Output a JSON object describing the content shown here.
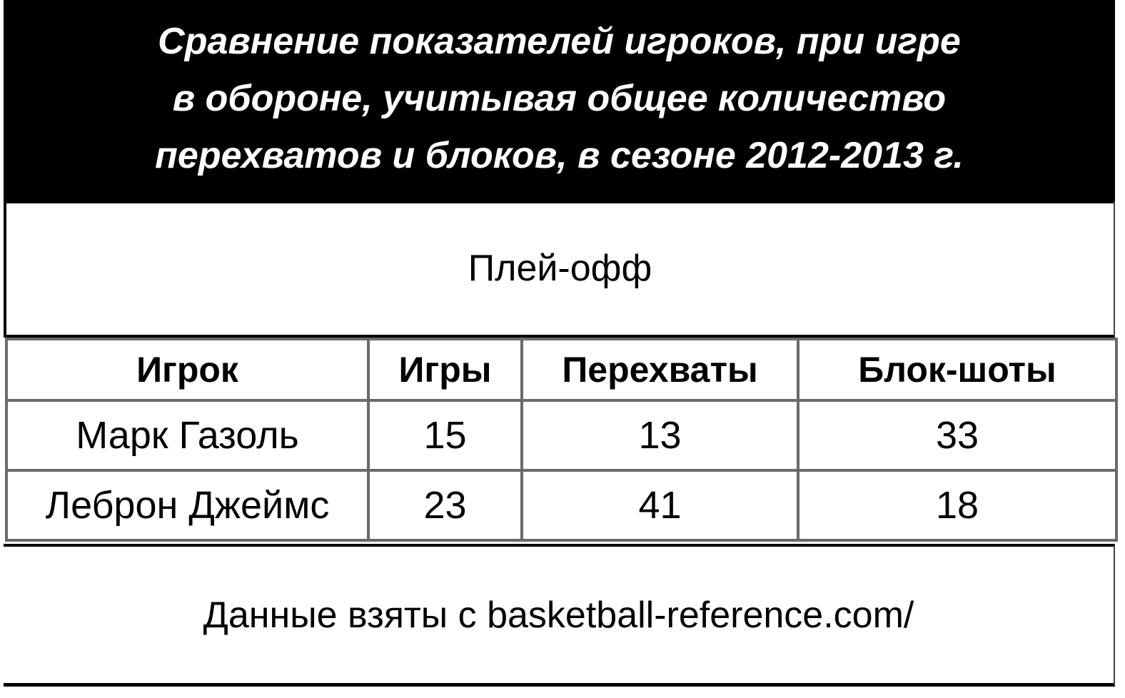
{
  "title_lines": [
    "Сравнение показателей игроков, при игре",
    "в обороне, учитывая общее количество",
    "перехватов и блоков, в сезоне 2012-2013 г."
  ],
  "subtitle": "Плей-офф",
  "footer": "Данные взяты с basketball-reference.com/",
  "chart_data": {
    "type": "table",
    "title": "Сравнение показателей игроков, при игре в обороне, учитывая общее количество перехватов и блоков, в сезоне 2012-2013 г.",
    "subtitle": "Плей-офф",
    "columns": [
      "Игрок",
      "Игры",
      "Перехваты",
      "Блок-шоты"
    ],
    "rows": [
      [
        "Марк Газоль",
        "15",
        "13",
        "33"
      ],
      [
        "Леброн Джеймс",
        "23",
        "41",
        "18"
      ]
    ],
    "note": "Данные взяты с basketball-reference.com/"
  },
  "colors": {
    "header_bg": "#000000",
    "header_text": "#ffffff",
    "grid_lines": "#6a6a6a"
  }
}
